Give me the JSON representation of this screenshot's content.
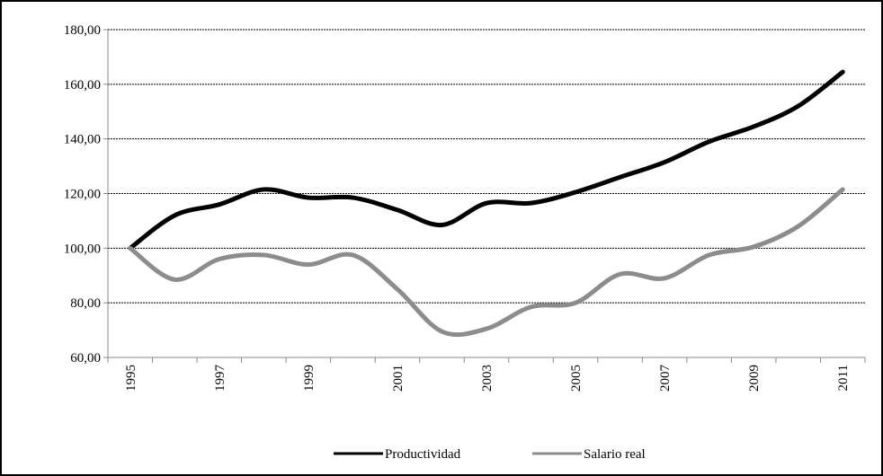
{
  "chart_data": {
    "type": "line",
    "categories": [
      "1995",
      null,
      "1997",
      null,
      "1999",
      null,
      "2001",
      null,
      "2003",
      null,
      "2005",
      null,
      "2007",
      null,
      "2009",
      null,
      "2011"
    ],
    "series": [
      {
        "name": "Productividad",
        "color": "#000000",
        "values": [
          100,
          112,
          116,
          121.5,
          118.5,
          118.5,
          114,
          108.5,
          116.5,
          116.5,
          120.5,
          126,
          131.5,
          139,
          144.5,
          152,
          164.5
        ]
      },
      {
        "name": "Salario real",
        "color": "#8c8c8c",
        "values": [
          100,
          88.5,
          96,
          97.5,
          94,
          97.5,
          85,
          69.5,
          70.5,
          78.5,
          80,
          90.5,
          89,
          97.5,
          100.5,
          108,
          121.5
        ]
      }
    ],
    "ylim": [
      60,
      180
    ],
    "yticks": [
      {
        "value": 60,
        "label": "60,00"
      },
      {
        "value": 80,
        "label": "80,00"
      },
      {
        "value": 100,
        "label": "100,00"
      },
      {
        "value": 120,
        "label": "120,00"
      },
      {
        "value": 140,
        "label": "140,00"
      },
      {
        "value": 160,
        "label": "160,00"
      },
      {
        "value": 180,
        "label": "180,00"
      }
    ],
    "grid": true,
    "legend": "bottom"
  }
}
